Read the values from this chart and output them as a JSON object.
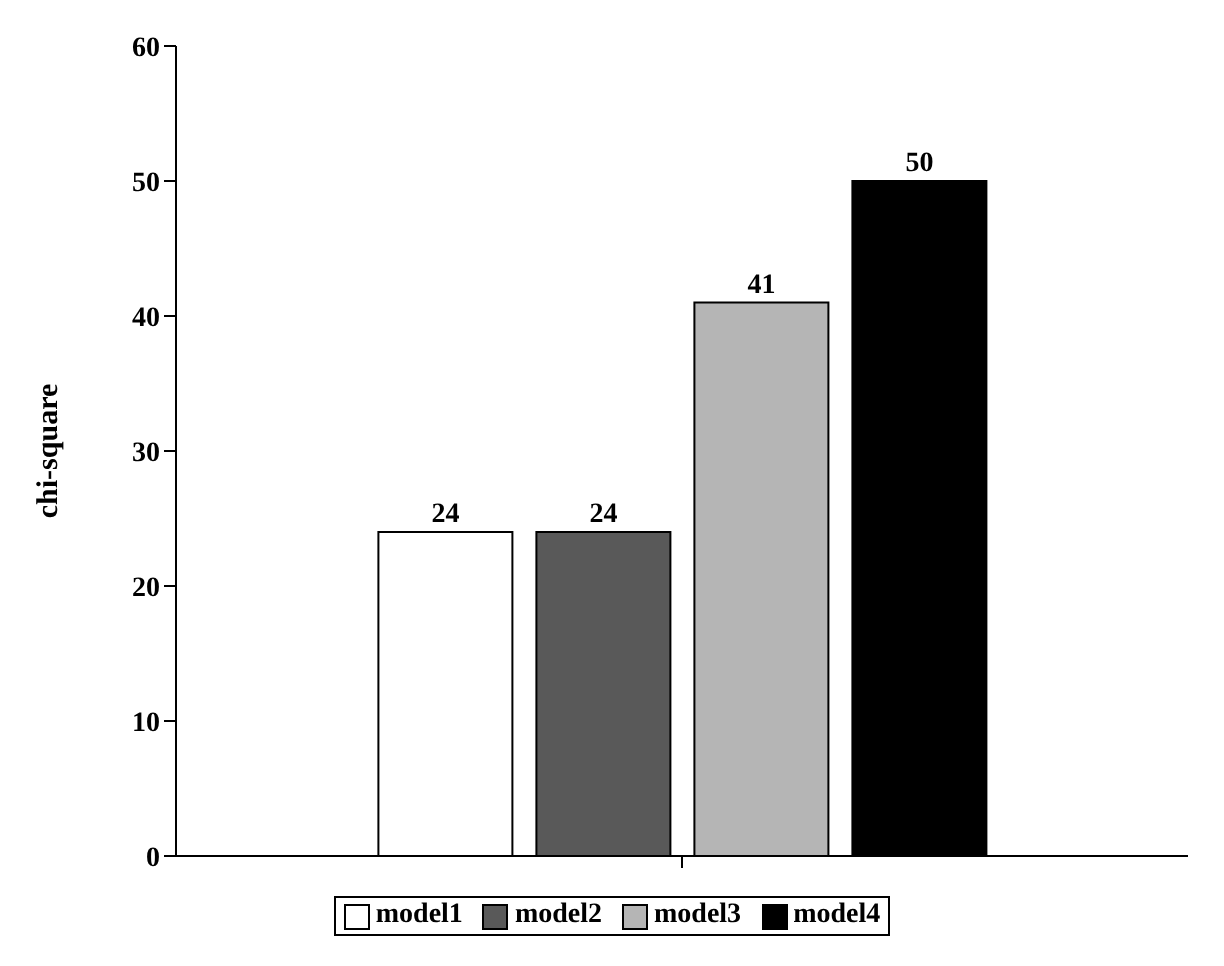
{
  "chart_data": {
    "type": "bar",
    "ylabel": "chi-square",
    "categories": [
      null
    ],
    "series": [
      {
        "name": "model1",
        "color": "#ffffff",
        "values": [
          24
        ]
      },
      {
        "name": "model2",
        "color": "#595959",
        "values": [
          24
        ]
      },
      {
        "name": "model3",
        "color": "#b5b5b5",
        "values": [
          41
        ]
      },
      {
        "name": "model4",
        "color": "#000000",
        "values": [
          50
        ]
      }
    ],
    "ylim": [
      0,
      60
    ],
    "yticks": [
      0,
      10,
      20,
      30,
      40,
      50,
      60
    ],
    "grid": false,
    "legend": "bottom",
    "data_labels": true
  }
}
